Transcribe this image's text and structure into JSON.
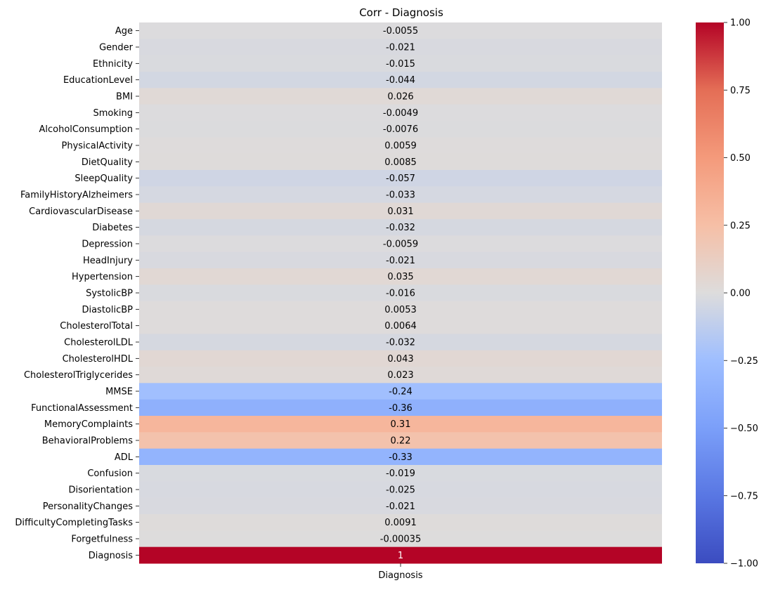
{
  "chart_data": {
    "type": "heatmap",
    "title": "Corr - Diagnosis",
    "xlabel": "",
    "ylabel": "",
    "columns": [
      "Diagnosis"
    ],
    "rows": [
      "Age",
      "Gender",
      "Ethnicity",
      "EducationLevel",
      "BMI",
      "Smoking",
      "AlcoholConsumption",
      "PhysicalActivity",
      "DietQuality",
      "SleepQuality",
      "FamilyHistoryAlzheimers",
      "CardiovascularDisease",
      "Diabetes",
      "Depression",
      "HeadInjury",
      "Hypertension",
      "SystolicBP",
      "DiastolicBP",
      "CholesterolTotal",
      "CholesterolLDL",
      "CholesterolHDL",
      "CholesterolTriglycerides",
      "MMSE",
      "FunctionalAssessment",
      "MemoryComplaints",
      "BehavioralProblems",
      "ADL",
      "Confusion",
      "Disorientation",
      "PersonalityChanges",
      "DifficultyCompletingTasks",
      "Forgetfulness",
      "Diagnosis"
    ],
    "values": [
      -0.0055,
      -0.021,
      -0.015,
      -0.044,
      0.026,
      -0.0049,
      -0.0076,
      0.0059,
      0.0085,
      -0.057,
      -0.033,
      0.031,
      -0.032,
      -0.0059,
      -0.021,
      0.035,
      -0.016,
      0.0053,
      0.0064,
      -0.032,
      0.043,
      0.023,
      -0.24,
      -0.36,
      0.31,
      0.22,
      -0.33,
      -0.019,
      -0.025,
      -0.021,
      0.0091,
      -0.00035,
      1
    ],
    "value_labels": [
      "-0.0055",
      "-0.021",
      "-0.015",
      "-0.044",
      "0.026",
      "-0.0049",
      "-0.0076",
      "0.0059",
      "0.0085",
      "-0.057",
      "-0.033",
      "0.031",
      "-0.032",
      "-0.0059",
      "-0.021",
      "0.035",
      "-0.016",
      "0.0053",
      "0.0064",
      "-0.032",
      "0.043",
      "0.023",
      "-0.24",
      "-0.36",
      "0.31",
      "0.22",
      "-0.33",
      "-0.019",
      "-0.025",
      "-0.021",
      "0.0091",
      "-0.00035",
      "1"
    ],
    "colormap": "coolwarm",
    "vmin": -1,
    "vmax": 1,
    "colorbar_ticks": [
      1.0,
      0.75,
      0.5,
      0.25,
      0.0,
      -0.25,
      -0.5,
      -0.75,
      -1.0
    ],
    "colorbar_tick_labels": [
      "1.00",
      "0.75",
      "0.50",
      "0.25",
      "0.00",
      "−0.25",
      "−0.50",
      "−0.75",
      "−1.00"
    ]
  }
}
